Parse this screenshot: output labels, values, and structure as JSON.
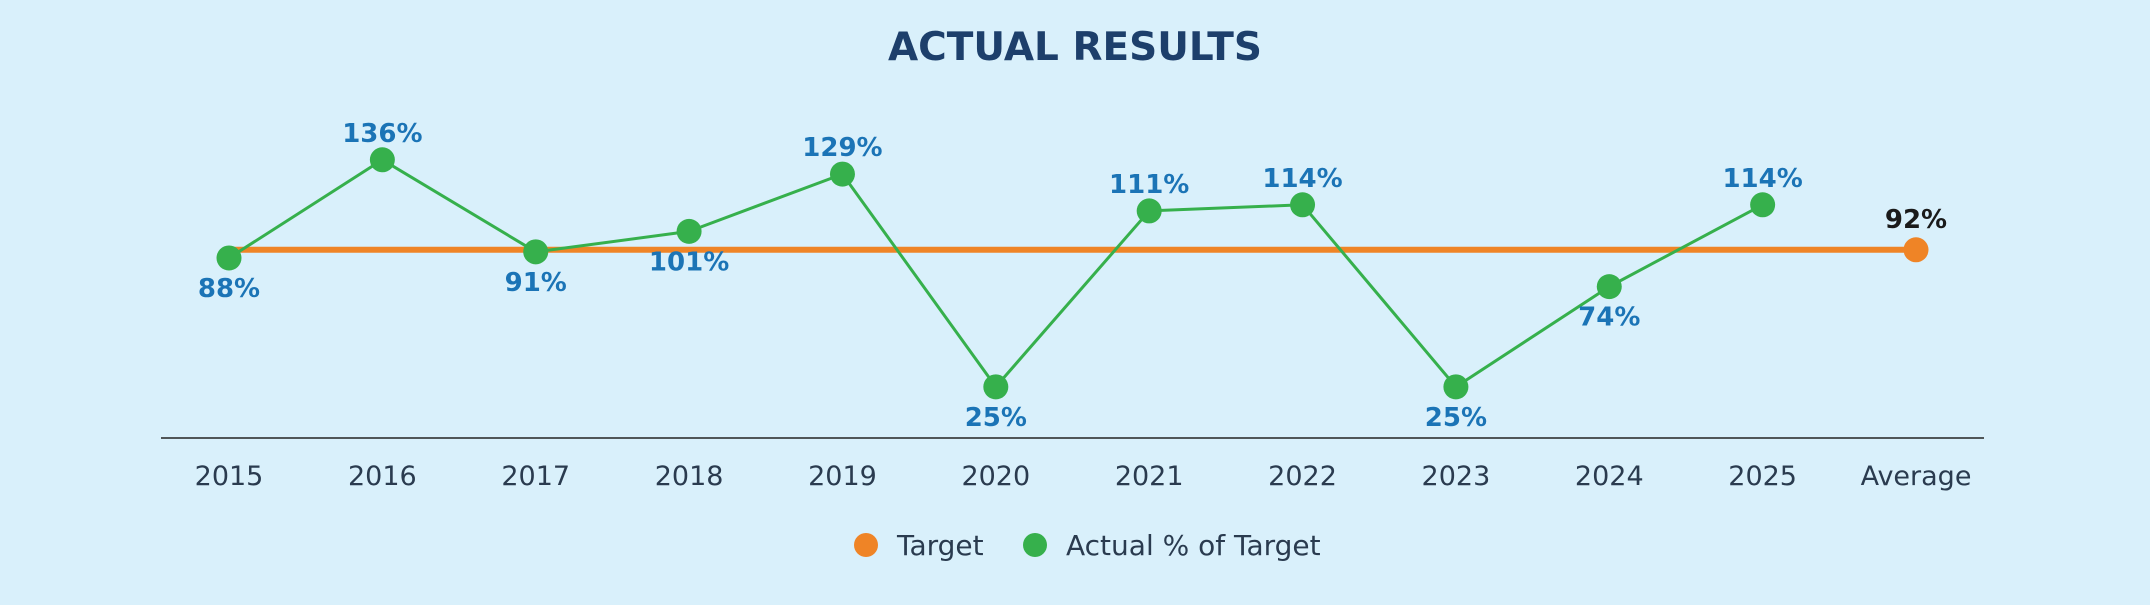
{
  "colors": {
    "background": "#d9f0fb",
    "title": "#1d3f6b",
    "target": "#ef8426",
    "actual": "#36b04c",
    "data_label": "#1b74b6",
    "average_label": "#1a1a1a",
    "axis": "#222222",
    "tick": "#2a3b4f"
  },
  "chart_data": {
    "type": "line",
    "title": "ACTUAL RESULTS",
    "xlabel": "",
    "ylabel": "",
    "categories": [
      "2015",
      "2016",
      "2017",
      "2018",
      "2019",
      "2020",
      "2021",
      "2022",
      "2023",
      "2024",
      "2025",
      "Average"
    ],
    "ylim": [
      0,
      175
    ],
    "grid": false,
    "legend_position": "bottom-center",
    "series": [
      {
        "name": "Target",
        "kind": "reference-line",
        "value": 92,
        "x_range": [
          "2015",
          "Average"
        ]
      },
      {
        "name": "Actual % of Target",
        "kind": "line-markers",
        "x": [
          "2015",
          "2016",
          "2017",
          "2018",
          "2019",
          "2020",
          "2021",
          "2022",
          "2023",
          "2024",
          "2025"
        ],
        "values": [
          88,
          136,
          91,
          101,
          129,
          25,
          111,
          114,
          25,
          74,
          114
        ],
        "labels": [
          "88%",
          "136%",
          "91%",
          "101%",
          "129%",
          "25%",
          "111%",
          "114%",
          "25%",
          "74%",
          "114%"
        ],
        "label_placement": [
          "below",
          "above",
          "below",
          "below",
          "above",
          "below",
          "above",
          "above",
          "below",
          "below",
          "above"
        ]
      }
    ],
    "average": {
      "category": "Average",
      "value": 92,
      "label": "92%"
    },
    "legend": [
      "Target",
      "Actual % of Target"
    ]
  }
}
